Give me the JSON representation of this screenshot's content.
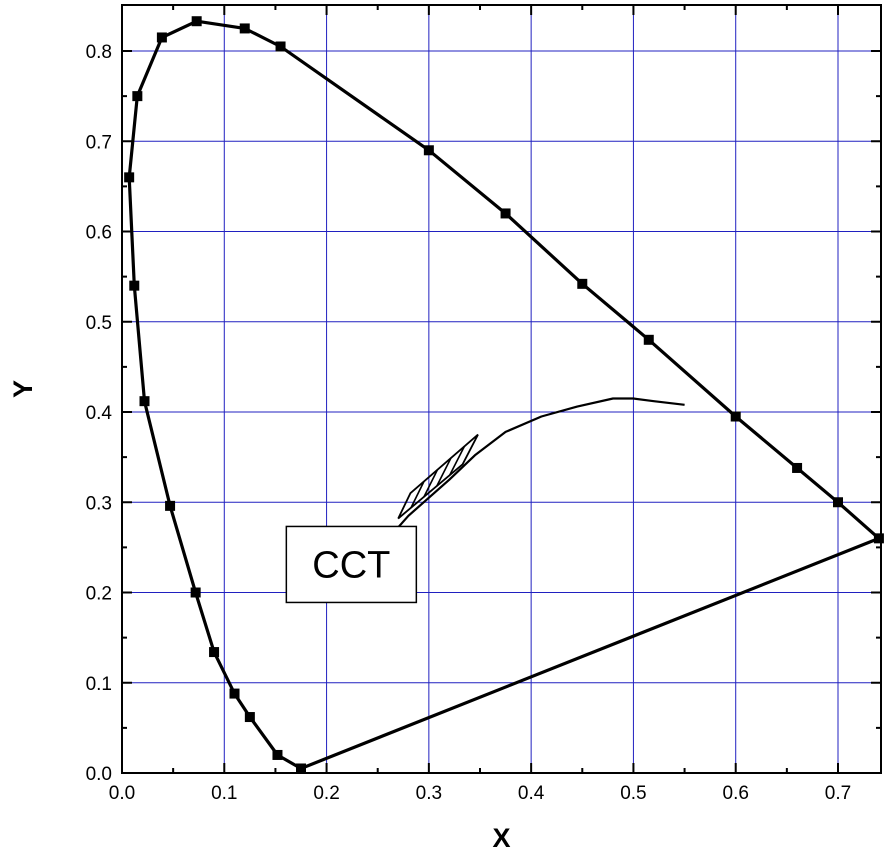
{
  "chart_data": {
    "type": "line",
    "title": "",
    "xlabel": "X",
    "ylabel": "Y",
    "xlim": [
      0.0,
      0.74
    ],
    "ylim": [
      0.0,
      0.85
    ],
    "x_ticks": [
      "0.0",
      "0.1",
      "0.2",
      "0.3",
      "0.4",
      "0.5",
      "0.6",
      "0.7"
    ],
    "y_ticks": [
      "0.0",
      "0.1",
      "0.2",
      "0.3",
      "0.4",
      "0.5",
      "0.6",
      "0.7",
      "0.8"
    ],
    "x_tick_values": [
      0.0,
      0.1,
      0.2,
      0.3,
      0.4,
      0.5,
      0.6,
      0.7
    ],
    "y_tick_values": [
      0.0,
      0.1,
      0.2,
      0.3,
      0.4,
      0.5,
      0.6,
      0.7,
      0.8
    ],
    "grid": true,
    "grid_color": "#2020c0",
    "line_color": "#000000",
    "series": [
      {
        "kind": "spectral-locus",
        "markers": true,
        "x": [
          0.175,
          0.152,
          0.125,
          0.11,
          0.09,
          0.072,
          0.047,
          0.022,
          0.012,
          0.007,
          0.015,
          0.039,
          0.073,
          0.12,
          0.155,
          0.3,
          0.375,
          0.45,
          0.515,
          0.6,
          0.66,
          0.7,
          0.74
        ],
        "y": [
          0.005,
          0.02,
          0.062,
          0.088,
          0.134,
          0.2,
          0.296,
          0.412,
          0.54,
          0.66,
          0.75,
          0.815,
          0.833,
          0.825,
          0.805,
          0.69,
          0.62,
          0.542,
          0.48,
          0.395,
          0.338,
          0.3,
          0.26
        ]
      },
      {
        "kind": "purple-line",
        "markers": false,
        "x": [
          0.175,
          0.74
        ],
        "y": [
          0.005,
          0.26
        ]
      },
      {
        "kind": "planckian-locus",
        "markers": false,
        "x": [
          0.255,
          0.28,
          0.3,
          0.32,
          0.345,
          0.375,
          0.41,
          0.445,
          0.48,
          0.5,
          0.52,
          0.55
        ],
        "y": [
          0.253,
          0.285,
          0.305,
          0.325,
          0.352,
          0.378,
          0.395,
          0.406,
          0.415,
          0.415,
          0.412,
          0.408
        ]
      }
    ],
    "annotations": [
      {
        "text": "CCT",
        "x": 0.19,
        "y": 0.22
      }
    ]
  }
}
